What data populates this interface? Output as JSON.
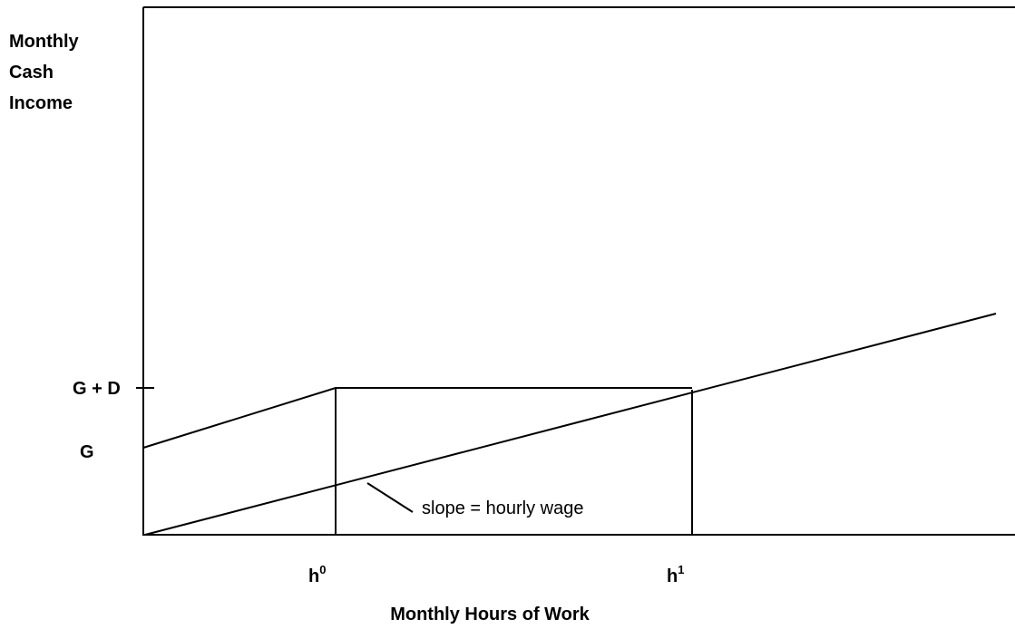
{
  "y_axis_label": [
    "Monthly",
    "Cash",
    "Income"
  ],
  "y_labels": {
    "g_plus_d": "G + D",
    "g": "G"
  },
  "x_labels": {
    "h0": {
      "base": "h",
      "sup": "0"
    },
    "h1": {
      "base": "h",
      "sup": "1"
    }
  },
  "annotation": "slope = hourly wage",
  "x_axis_label": "Monthly Hours of Work"
}
